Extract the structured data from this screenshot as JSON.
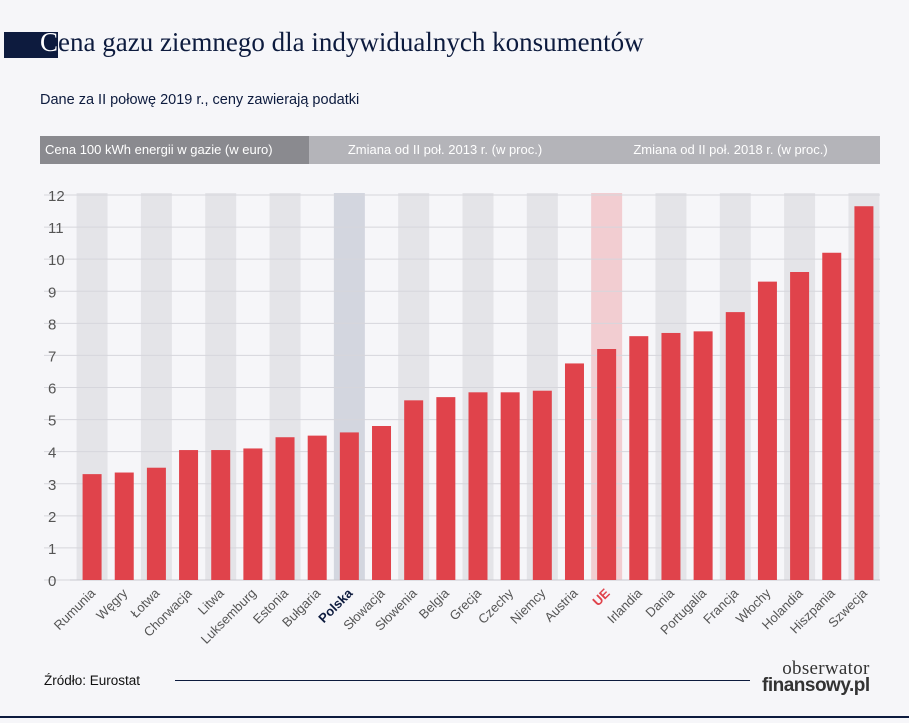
{
  "header": {
    "title_first_letter": "C",
    "title_rest": "ena gazu ziemnego dla indywidualnych konsumentów",
    "subtitle": "Dane za II połowę 2019 r., ceny zawierają podatki"
  },
  "tabs": [
    {
      "label": "Cena 100 kWh energii w gazie (w euro)"
    },
    {
      "label": "Zmiana od II poł. 2013 r. (w proc.)"
    },
    {
      "label": "Zmiana od II poł. 2018 r. (w proc.)"
    }
  ],
  "footer": {
    "source": "Źródło: Eurostat",
    "logo_line1": "obserwator",
    "logo_line2": "finansowy.pl"
  },
  "colors": {
    "bar": "#e0434b",
    "band": "#e4e4e8",
    "band_poland": "#d3d6df",
    "band_eu": "#f2cdd1",
    "label": "#555555",
    "label_poland": "#0d1b3e",
    "label_eu": "#e0434b",
    "navy": "#0d1b3e"
  },
  "chart_data": {
    "type": "bar",
    "categories": [
      "Rumunia",
      "Węgry",
      "Łotwa",
      "Chorwacja",
      "Litwa",
      "Luksemburg",
      "Estonia",
      "Bułgaria",
      "Polska",
      "Słowacja",
      "Słowenia",
      "Belgia",
      "Grecja",
      "Czechy",
      "Niemcy",
      "Austria",
      "UE",
      "Irlandia",
      "Dania",
      "Portugalia",
      "Francja",
      "Włochy",
      "Holandia",
      "Hiszpania",
      "Szwecja"
    ],
    "values": [
      3.3,
      3.35,
      3.5,
      4.05,
      4.05,
      4.1,
      4.45,
      4.5,
      4.6,
      4.8,
      5.6,
      5.7,
      5.85,
      5.85,
      5.9,
      6.75,
      7.2,
      7.6,
      7.7,
      7.75,
      8.35,
      9.3,
      9.6,
      10.2,
      11.65
    ],
    "highlight": {
      "Polska": "poland",
      "UE": "eu"
    },
    "ylim": [
      0,
      12
    ],
    "yticks": [
      "0",
      "1",
      "2",
      "3",
      "4",
      "5",
      "6",
      "7",
      "8",
      "9",
      "10",
      "11",
      "12"
    ],
    "grid": true
  }
}
